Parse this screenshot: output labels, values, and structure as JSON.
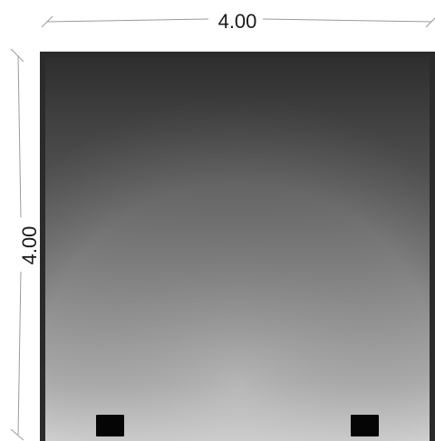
{
  "dimensions": {
    "width_label": "4.00",
    "height_label": "4.00"
  },
  "colors": {
    "frame": "#2b2b2b",
    "gradient_top": "#3a3a3a",
    "gradient_mid": "#7d7d7d",
    "gradient_bottom": "#c9c9c9",
    "dimension_line": "#9a9a9a",
    "dimension_text": "#1a1a1a",
    "post": "#050505"
  },
  "elements": {
    "posts": [
      {
        "name": "post-left"
      },
      {
        "name": "post-right"
      }
    ]
  }
}
